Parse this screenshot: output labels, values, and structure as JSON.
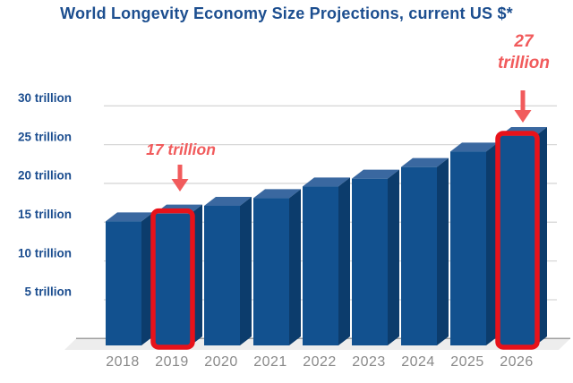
{
  "title": "World Longevity Economy Size Projections, current US $*",
  "chart_data": {
    "type": "bar",
    "title": "World Longevity Economy Size Projections, current US $*",
    "unit": "trillion US $",
    "categories": [
      "2018",
      "2019",
      "2020",
      "2021",
      "2022",
      "2023",
      "2024",
      "2025",
      "2026"
    ],
    "values": [
      16,
      17,
      18,
      19,
      20.5,
      21.5,
      23,
      25,
      27
    ],
    "ylim": [
      0,
      32
    ],
    "grid": true,
    "legend": "none",
    "y_ticks": [
      {
        "value": 30,
        "label": "30 trillion"
      },
      {
        "value": 25,
        "label": "25 trillion"
      },
      {
        "value": 20,
        "label": "20 trillion"
      },
      {
        "value": 15,
        "label": "15 trillion"
      },
      {
        "value": 10,
        "label": "10 trillion"
      },
      {
        "value": 5,
        "label": "5 trillion"
      }
    ],
    "highlighted_years": [
      "2019",
      "2026"
    ],
    "annotations": [
      {
        "year": "2019",
        "text_lines": [
          "17 trillion"
        ]
      },
      {
        "year": "2026",
        "text_lines": [
          "27",
          "trillion"
        ]
      }
    ],
    "colors": {
      "title": "#1C4E8F",
      "axis_label": "#1B4D8F",
      "year_label": "#8A8A8A",
      "gridline": "#D8D8D8",
      "floor": "#EDEDED",
      "floor_edge": "#A0A0A0",
      "bar_front": "#12518F",
      "bar_top": "#3A68A0",
      "bar_side": "#0C3C6C",
      "highlight_outline": "#E8121A",
      "annotation": "#F15B5C"
    }
  }
}
